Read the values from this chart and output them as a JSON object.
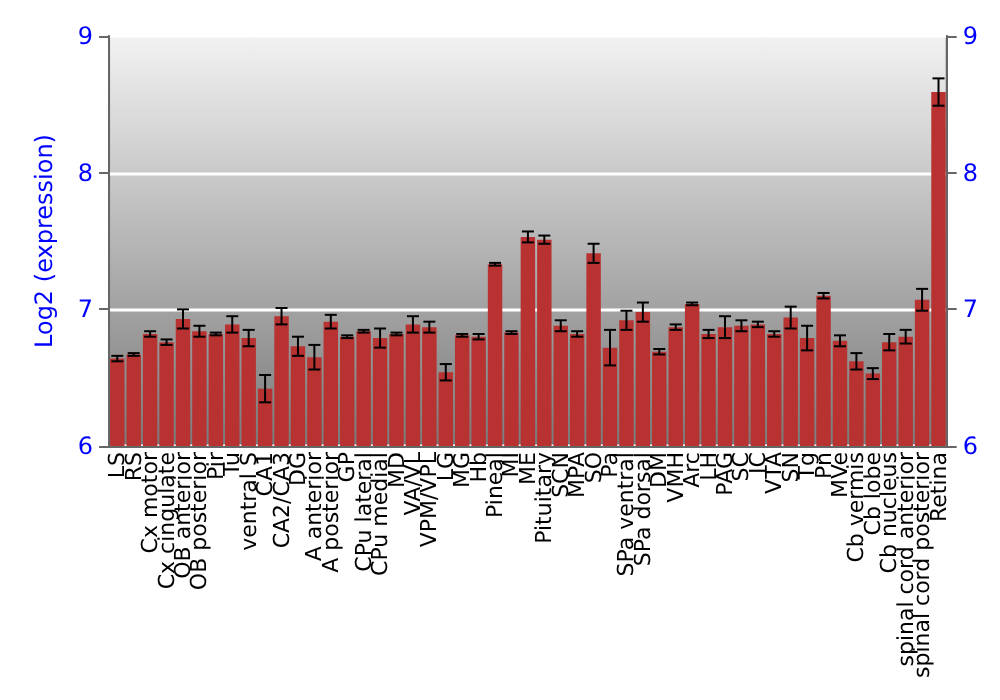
{
  "chart_data": {
    "type": "bar",
    "ylabel": "Log2 (expression)",
    "categories": [
      "LS",
      "RS",
      "Cx motor",
      "Cx cingulate",
      "OB anterior",
      "OB posterior",
      "Pir",
      "Tu",
      "ventral S",
      "CA1",
      "CA2/CA3",
      "DG",
      "A anterior",
      "A posterior",
      "GP",
      "CPu lateral",
      "CPu medial",
      "MD",
      "VA/VL",
      "VPM/VPL",
      "LG",
      "MG",
      "Hb",
      "Pineal",
      "MI",
      "ME",
      "Pituitary",
      "SCN",
      "MPA",
      "SO",
      "Pa",
      "SPa ventral",
      "SPa dorsal",
      "DM",
      "VMH",
      "Arc",
      "LH",
      "PAG",
      "SC",
      "IC",
      "VTA",
      "SN",
      "Tg",
      "Pn",
      "MVe",
      "Cb vermis",
      "Cb lobe",
      "Cb nucleus",
      "spinal cord anterior",
      "spinal cord posterior",
      "Retina"
    ],
    "values": [
      6.64,
      6.67,
      6.82,
      6.76,
      6.93,
      6.84,
      6.82,
      6.89,
      6.79,
      6.42,
      6.95,
      6.73,
      6.65,
      6.91,
      6.8,
      6.84,
      6.79,
      6.82,
      6.89,
      6.87,
      6.54,
      6.81,
      6.8,
      7.33,
      6.83,
      7.53,
      7.51,
      6.88,
      6.82,
      7.41,
      6.72,
      6.92,
      6.98,
      6.69,
      6.87,
      7.04,
      6.82,
      6.87,
      6.88,
      6.89,
      6.82,
      6.94,
      6.79,
      7.1,
      6.77,
      6.62,
      6.53,
      6.76,
      6.8,
      7.07,
      8.59
    ],
    "errors": [
      0.02,
      0.01,
      0.02,
      0.02,
      0.07,
      0.04,
      0.01,
      0.06,
      0.06,
      0.1,
      0.06,
      0.07,
      0.09,
      0.05,
      0.01,
      0.01,
      0.07,
      0.01,
      0.06,
      0.04,
      0.06,
      0.01,
      0.02,
      0.01,
      0.01,
      0.04,
      0.03,
      0.04,
      0.02,
      0.07,
      0.13,
      0.07,
      0.07,
      0.02,
      0.02,
      0.01,
      0.03,
      0.08,
      0.04,
      0.02,
      0.02,
      0.08,
      0.09,
      0.02,
      0.04,
      0.06,
      0.04,
      0.06,
      0.05,
      0.08,
      0.1
    ],
    "color": "#b83232",
    "ylim": [
      6,
      9
    ],
    "yticks": [
      6,
      7,
      8,
      9
    ],
    "y2lim": [
      6,
      9
    ],
    "y2ticks": [
      6,
      7,
      8,
      9
    ],
    "grid": "y"
  }
}
